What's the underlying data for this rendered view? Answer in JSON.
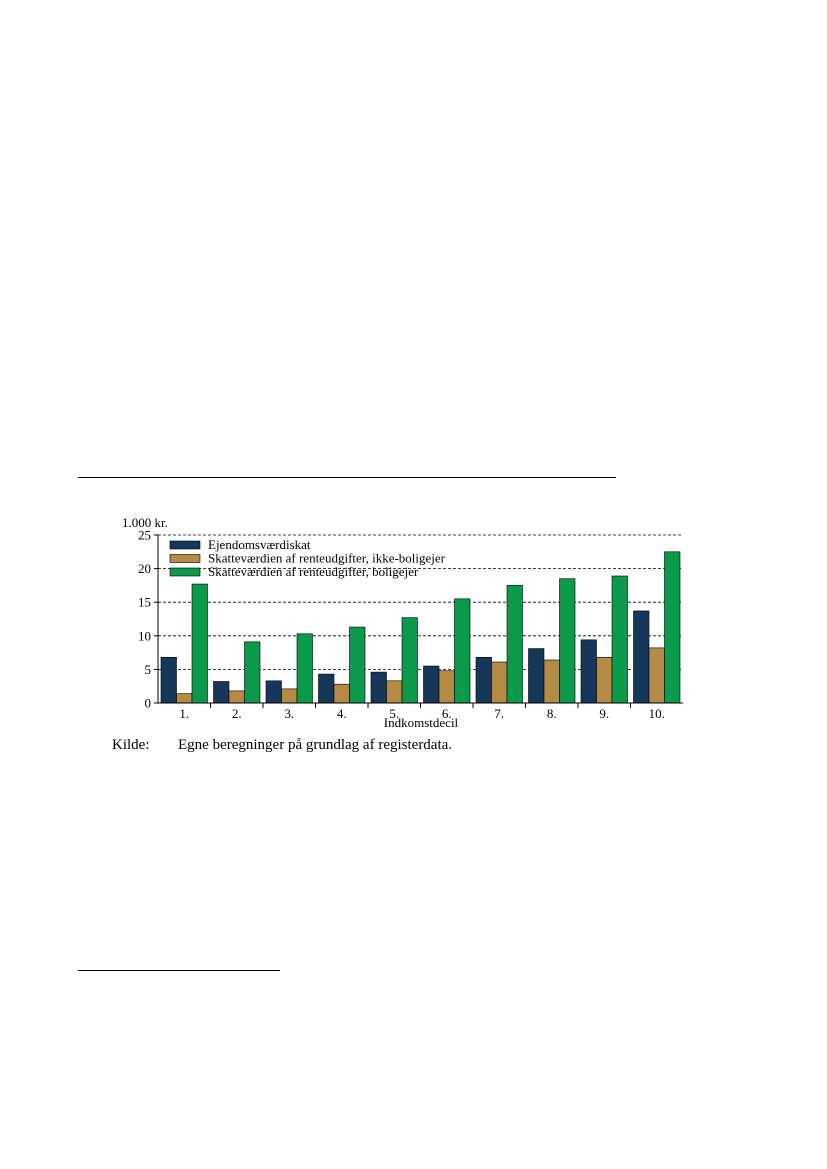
{
  "chart_data": {
    "type": "bar",
    "unit_label": "1.000 kr.",
    "xlabel": "Indkomstdecil",
    "ylabel": "",
    "ylim": [
      0,
      25
    ],
    "yticks": [
      0,
      5,
      10,
      15,
      20,
      25
    ],
    "grid": true,
    "legend_position": "top-left",
    "categories": [
      "1.",
      "2.",
      "3.",
      "4.",
      "5.",
      "6.",
      "7.",
      "8.",
      "9.",
      "10."
    ],
    "series": [
      {
        "name": "Ejendomsværdiskat",
        "color": "#14375a",
        "values": [
          6.8,
          3.2,
          3.3,
          4.3,
          4.6,
          5.5,
          6.8,
          8.1,
          9.4,
          13.7
        ]
      },
      {
        "name": "Skatteværdien af renteudgifter, ikke-boligejer",
        "color": "#b58a44",
        "values": [
          1.4,
          1.8,
          2.1,
          2.8,
          3.3,
          4.8,
          6.1,
          6.4,
          6.8,
          8.2
        ]
      },
      {
        "name": "Skatteværdien af renteudgifter, boligejer",
        "color": "#0a9a4a",
        "values": [
          17.7,
          9.1,
          10.3,
          11.3,
          12.7,
          15.5,
          17.5,
          18.5,
          18.9,
          22.5
        ]
      }
    ]
  },
  "source": {
    "label": "Kilde:",
    "text": "Egne beregninger på grundlag af registerdata."
  }
}
